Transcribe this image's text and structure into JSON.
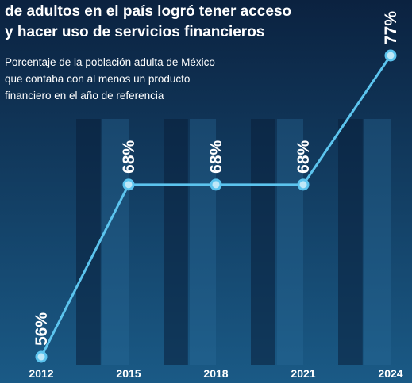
{
  "chart_data": {
    "type": "line",
    "title": [
      "de adultos en el país logró tener acceso",
      "y hacer uso de servicios financieros"
    ],
    "subtitle": [
      "Porcentaje de la población adulta de México",
      "que contaba con al menos un producto",
      "financiero en el año de referencia"
    ],
    "categories": [
      "2012",
      "2015",
      "2018",
      "2021",
      "2024"
    ],
    "series": [
      {
        "color": "#5cc4ee",
        "values": [
          56,
          68,
          68,
          68,
          77
        ],
        "value_labels": [
          "56%",
          "68%",
          "68%",
          "68%",
          "77%"
        ]
      }
    ]
  }
}
